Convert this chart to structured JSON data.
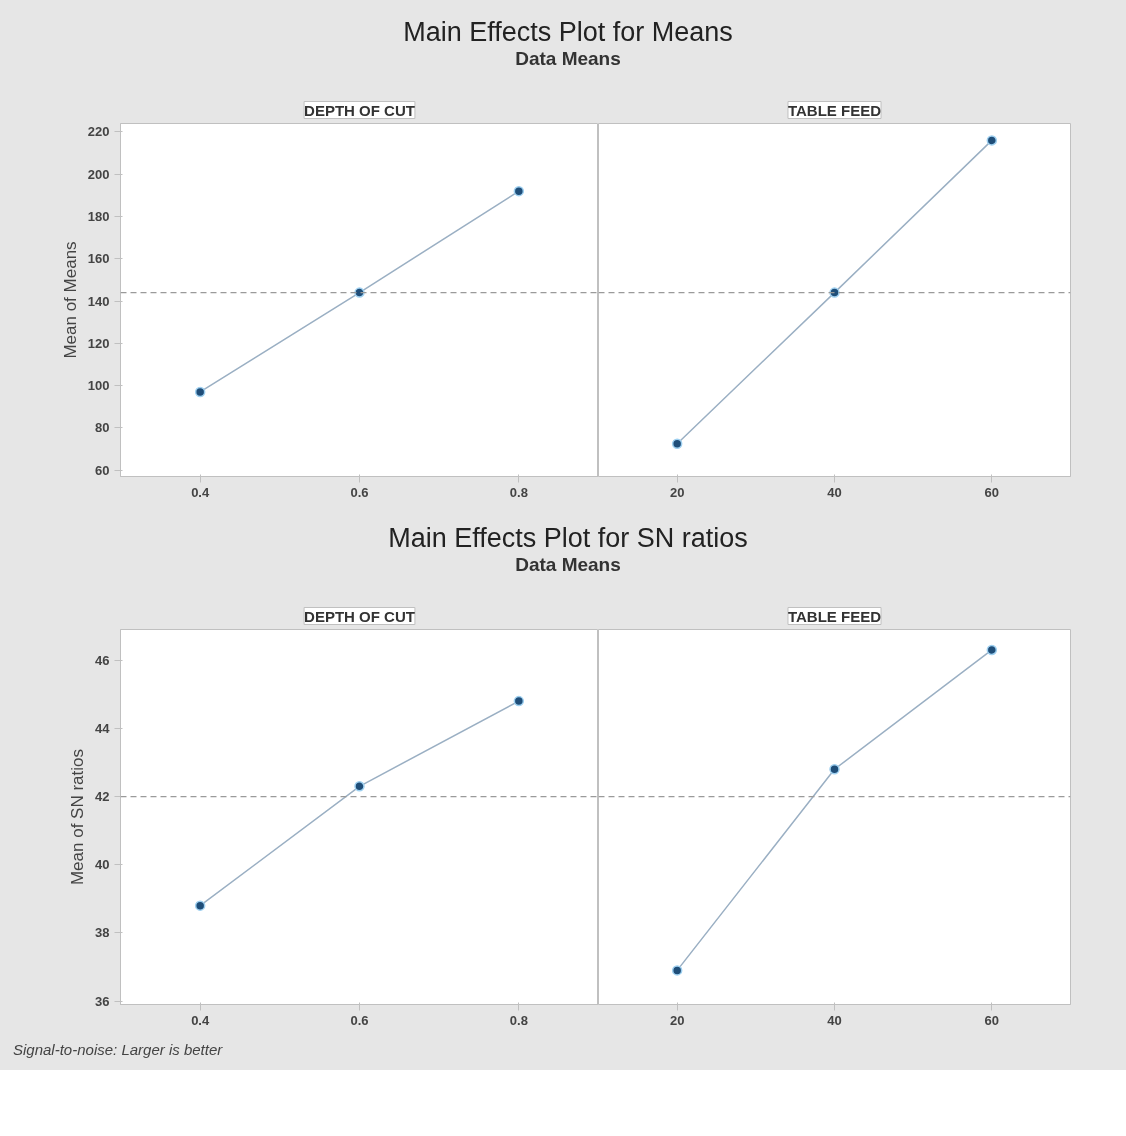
{
  "chart_data": [
    {
      "type": "line",
      "title": "DEPTH OF CUT",
      "ylabel": "Mean of Means",
      "annotations": [
        "Main Effects Plot for Means",
        "Data Means"
      ],
      "x": [
        0.4,
        0.6,
        0.8
      ],
      "xlim": [
        0.3,
        0.9
      ],
      "xticks": [
        0.4,
        0.6,
        0.8
      ],
      "ylim": [
        57,
        224
      ],
      "yticks": [
        60,
        80,
        100,
        120,
        140,
        160,
        180,
        200,
        220
      ],
      "grid": false,
      "marker": "circle",
      "line_style": "solid",
      "series": [
        {
          "color": "#1f4e79",
          "values": [
            97,
            144,
            192
          ]
        }
      ],
      "ref_lines": [
        {
          "axis": "y",
          "value": 144,
          "color": "#9a9a9a",
          "line_style": "dashed"
        }
      ]
    },
    {
      "type": "line",
      "title": "TABLE FEED",
      "x": [
        20,
        40,
        60
      ],
      "xlim": [
        10,
        70
      ],
      "xticks": [
        20,
        40,
        60
      ],
      "ylim": [
        57,
        224
      ],
      "yticks": [
        60,
        80,
        100,
        120,
        140,
        160,
        180,
        200,
        220
      ],
      "tick_labels": "x",
      "grid": false,
      "marker": "circle",
      "line_style": "solid",
      "series": [
        {
          "color": "#1f4e79",
          "values": [
            72.5,
            144,
            216
          ]
        }
      ],
      "ref_lines": [
        {
          "axis": "y",
          "value": 144,
          "color": "#9a9a9a",
          "line_style": "dashed"
        }
      ]
    },
    {
      "type": "line",
      "title": "DEPTH OF CUT",
      "ylabel": "Mean of SN ratios",
      "annotations": [
        "Main Effects Plot for SN ratios",
        "Data Means",
        "Signal-to-noise: Larger is better"
      ],
      "x": [
        0.4,
        0.6,
        0.8
      ],
      "xlim": [
        0.3,
        0.9
      ],
      "xticks": [
        0.4,
        0.6,
        0.8
      ],
      "ylim": [
        35.9,
        46.9
      ],
      "yticks": [
        36,
        38,
        40,
        42,
        44,
        46
      ],
      "grid": false,
      "marker": "circle",
      "line_style": "solid",
      "series": [
        {
          "color": "#1f4e79",
          "values": [
            38.8,
            42.3,
            44.8
          ]
        }
      ],
      "ref_lines": [
        {
          "axis": "y",
          "value": 42.0,
          "color": "#9a9a9a",
          "line_style": "dashed"
        }
      ]
    },
    {
      "type": "line",
      "title": "TABLE FEED",
      "x": [
        20,
        40,
        60
      ],
      "xlim": [
        10,
        70
      ],
      "xticks": [
        20,
        40,
        60
      ],
      "ylim": [
        35.9,
        46.9
      ],
      "yticks": [
        36,
        38,
        40,
        42,
        44,
        46
      ],
      "tick_labels": "x",
      "grid": false,
      "marker": "circle",
      "line_style": "solid",
      "series": [
        {
          "color": "#1f4e79",
          "values": [
            36.9,
            42.8,
            46.3
          ]
        }
      ],
      "ref_lines": [
        {
          "axis": "y",
          "value": 42.0,
          "color": "#9a9a9a",
          "line_style": "dashed"
        }
      ]
    }
  ]
}
